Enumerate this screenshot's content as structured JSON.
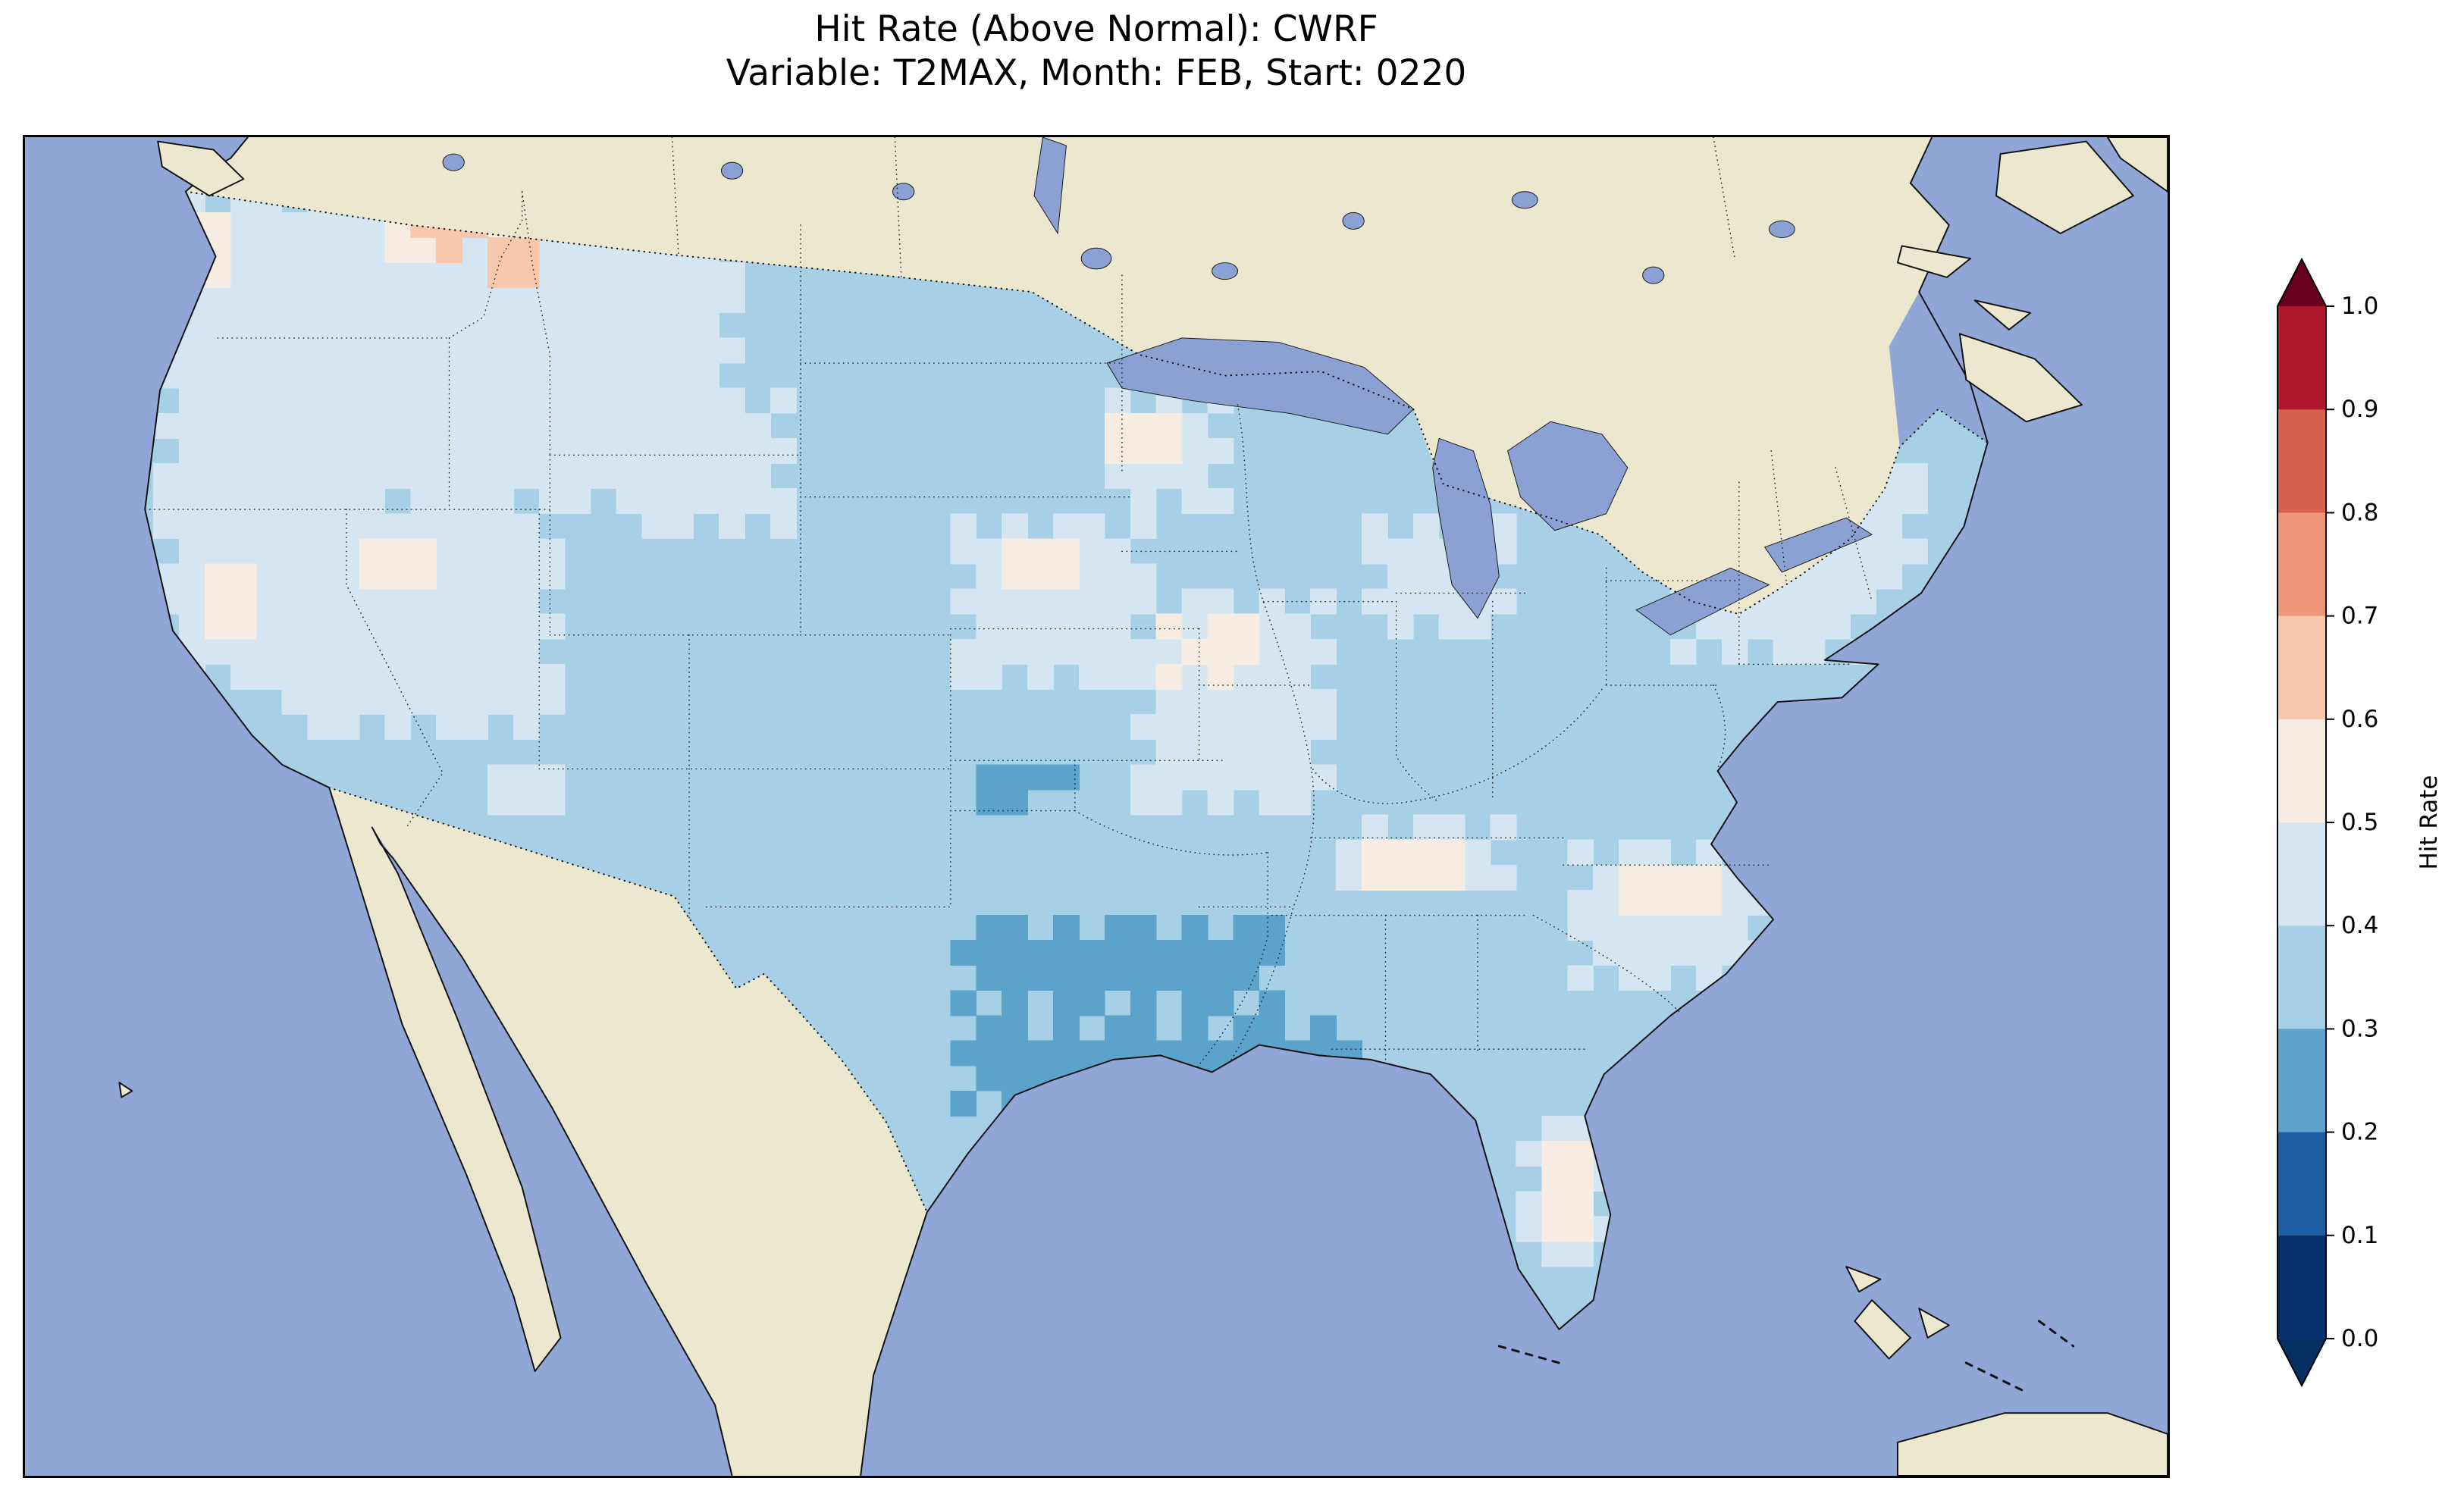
{
  "figure": {
    "title": "Hit Rate (Above Normal): CWRF",
    "subtitle": "Variable: T2MAX, Month: FEB, Start: 0220"
  },
  "chart_data": {
    "type": "heatmap",
    "title": "Hit Rate (Above Normal): CWRF",
    "subtitle": "Variable: T2MAX, Month: FEB, Start: 0220",
    "metric": "Hit Rate (Above Normal)",
    "model": "CWRF",
    "variable": "T2MAX",
    "month": "FEB",
    "start": "0220",
    "region": "Contiguous United States map with surrounding Canada, Mexico, Pacific and Atlantic oceans, Gulf of Mexico, Great Lakes, Baja California, Cuba and Bahamas",
    "colorbar": {
      "label": "Hit Rate",
      "ticks_top_to_bottom": [
        "1.0",
        "0.9",
        "0.8",
        "0.7",
        "0.6",
        "0.5",
        "0.4",
        "0.3",
        "0.2",
        "0.1",
        "0.0"
      ],
      "range": [
        0.0,
        1.0
      ],
      "bin_size": 0.1,
      "extend": "both",
      "bin_colors_low_to_high": [
        "#08306b",
        "#1e5ea4",
        "#5ba3cb",
        "#a7cfe5",
        "#d4e6f1",
        "#f7ece2",
        "#f9c7ab",
        "#ee9677",
        "#d65f4d",
        "#ae172c"
      ],
      "under_color": "#053061",
      "over_color": "#67001f"
    },
    "map_colors": {
      "ocean": "#90a6d6",
      "land_no_data": "#ece8cf",
      "lake": "#8ca1d3",
      "coastline": "#111111"
    },
    "base_bin": 3,
    "base_bin_range": "0.3-0.4",
    "summary": "Hit rates over the CONUS are mostly 0.3-0.5 (light blues). A 0.2-0.3 (deeper blue) region covers west/central Texas with a small spot in central Colorado. Near-white 0.4-0.6 patches appear over the Pacific Northwest, Nevada/Utah, Nebraska, Minnesota, Iowa/Missouri, Michigan, Kentucky/Tennessee, Virginia/Carolinas, the Northeast and Florida. A few pinkish 0.5-0.7 cells sit along the Montana/Idaho border with Canada.",
    "cell_size_svg_units": 12,
    "value_patches": [
      [
        60,
        18,
        276,
        150,
        4
      ],
      [
        56,
        150,
        80,
        110,
        4
      ],
      [
        120,
        168,
        130,
        120,
        4
      ],
      [
        276,
        120,
        84,
        72,
        4
      ],
      [
        430,
        175,
        100,
        85,
        4
      ],
      [
        500,
        125,
        60,
        60,
        4
      ],
      [
        510,
        215,
        100,
        110,
        4
      ],
      [
        768,
        155,
        100,
        95,
        4
      ],
      [
        725,
        330,
        100,
        68,
        4
      ],
      [
        700,
        465,
        42,
        68,
        4
      ],
      [
        628,
        178,
        76,
        55,
        4
      ],
      [
        608,
        325,
        88,
        38,
        4
      ],
      [
        210,
        300,
        40,
        28,
        4
      ],
      [
        856,
        150,
        40,
        60,
        4
      ],
      [
        508,
        132,
        30,
        28,
        5
      ],
      [
        450,
        192,
        40,
        28,
        5
      ],
      [
        528,
        232,
        44,
        32,
        5
      ],
      [
        628,
        332,
        52,
        22,
        5
      ],
      [
        744,
        344,
        48,
        26,
        5
      ],
      [
        706,
        474,
        22,
        20,
        5
      ],
      [
        708,
        506,
        20,
        18,
        5
      ],
      [
        150,
        196,
        30,
        26,
        5
      ],
      [
        84,
        200,
        22,
        34,
        5
      ],
      [
        684,
        556,
        12,
        12,
        5
      ],
      [
        660,
        556,
        12,
        12,
        5
      ],
      [
        72,
        30,
        26,
        30,
        5
      ],
      [
        166,
        24,
        18,
        30,
        5
      ],
      [
        218,
        28,
        26,
        18,
        5
      ],
      [
        180,
        28,
        38,
        34,
        6
      ],
      [
        214,
        42,
        20,
        28,
        6
      ],
      [
        436,
        376,
        150,
        50,
        2
      ],
      [
        436,
        420,
        190,
        45,
        2
      ],
      [
        470,
        462,
        120,
        40,
        2
      ],
      [
        560,
        500,
        50,
        36,
        2
      ],
      [
        448,
        294,
        26,
        26,
        2
      ],
      [
        440,
        302,
        42,
        12,
        2
      ],
      [
        332,
        418,
        14,
        14,
        2
      ]
    ]
  }
}
